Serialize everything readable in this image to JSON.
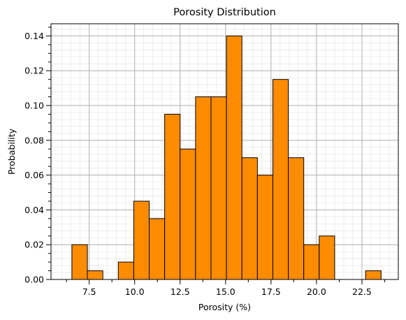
{
  "chart_data": {
    "type": "bar",
    "title": "Porosity Distribution",
    "xlabel": "Porosity (%)",
    "ylabel": "Probability",
    "xlim": [
      5.4,
      24.5
    ],
    "ylim": [
      0,
      0.147
    ],
    "grid": true,
    "minor_grid": true,
    "bar_color": "#ff8c00",
    "edge_color": "#000000",
    "bin_width": 0.85,
    "bins": [
      {
        "start": 6.55,
        "value": 0.02
      },
      {
        "start": 7.4,
        "value": 0.005
      },
      {
        "start": 8.25,
        "value": 0.0
      },
      {
        "start": 9.1,
        "value": 0.01
      },
      {
        "start": 9.95,
        "value": 0.045
      },
      {
        "start": 10.8,
        "value": 0.035
      },
      {
        "start": 11.65,
        "value": 0.095
      },
      {
        "start": 12.5,
        "value": 0.075
      },
      {
        "start": 13.35,
        "value": 0.105
      },
      {
        "start": 14.2,
        "value": 0.105
      },
      {
        "start": 15.05,
        "value": 0.14
      },
      {
        "start": 15.9,
        "value": 0.07
      },
      {
        "start": 16.75,
        "value": 0.06
      },
      {
        "start": 17.6,
        "value": 0.115
      },
      {
        "start": 18.45,
        "value": 0.07
      },
      {
        "start": 19.3,
        "value": 0.02
      },
      {
        "start": 20.15,
        "value": 0.025
      },
      {
        "start": 21.0,
        "value": 0.0
      },
      {
        "start": 21.85,
        "value": 0.0
      },
      {
        "start": 22.7,
        "value": 0.005
      }
    ],
    "xticks": [
      7.5,
      10.0,
      12.5,
      15.0,
      17.5,
      20.0,
      22.5
    ],
    "xtick_labels": [
      "7.5",
      "10.0",
      "12.5",
      "15.0",
      "17.5",
      "20.0",
      "22.5"
    ],
    "yticks": [
      0.0,
      0.02,
      0.04,
      0.06,
      0.08,
      0.1,
      0.12,
      0.14
    ],
    "ytick_labels": [
      "0.00",
      "0.02",
      "0.04",
      "0.06",
      "0.08",
      "0.10",
      "0.12",
      "0.14"
    ]
  }
}
